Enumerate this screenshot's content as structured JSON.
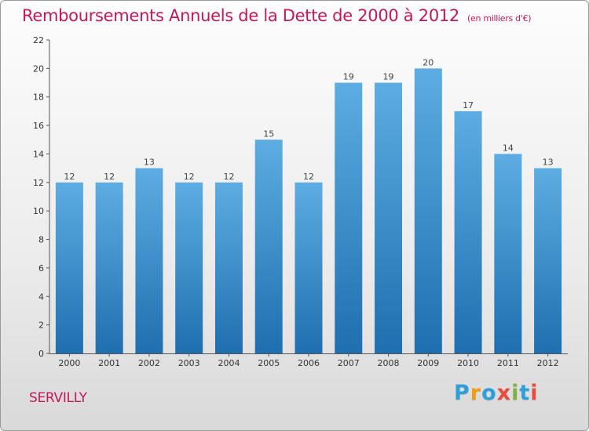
{
  "header": {
    "title": "Remboursements Annuels de la Dette de 2000 à 2012",
    "unit": "(en milliers d'€)"
  },
  "commune": "SERVILLY",
  "logo": {
    "letters": [
      "P",
      "r",
      "o",
      "x",
      "i",
      "t",
      "i"
    ],
    "colors": [
      "#2e9fd8",
      "#f39c12",
      "#2e9fd8",
      "#e74c3c",
      "#7cb342",
      "#2e9fd8",
      "#e74c3c"
    ]
  },
  "colors": {
    "bar_top": "#5dade2",
    "bar_bottom": "#1f6fb0",
    "title": "#c2185b"
  },
  "chart_data": {
    "type": "bar",
    "title": "Remboursements Annuels de la Dette de 2000 à 2012",
    "categories": [
      "2000",
      "2001",
      "2002",
      "2003",
      "2004",
      "2005",
      "2006",
      "2007",
      "2008",
      "2009",
      "2010",
      "2011",
      "2012"
    ],
    "values": [
      12,
      12,
      13,
      12,
      12,
      15,
      12,
      19,
      19,
      20,
      17,
      14,
      13
    ],
    "ylim": [
      0,
      22
    ],
    "yticks": [
      0,
      2,
      4,
      6,
      8,
      10,
      12,
      14,
      16,
      18,
      20,
      22
    ],
    "grid": false,
    "data_labels": true
  }
}
